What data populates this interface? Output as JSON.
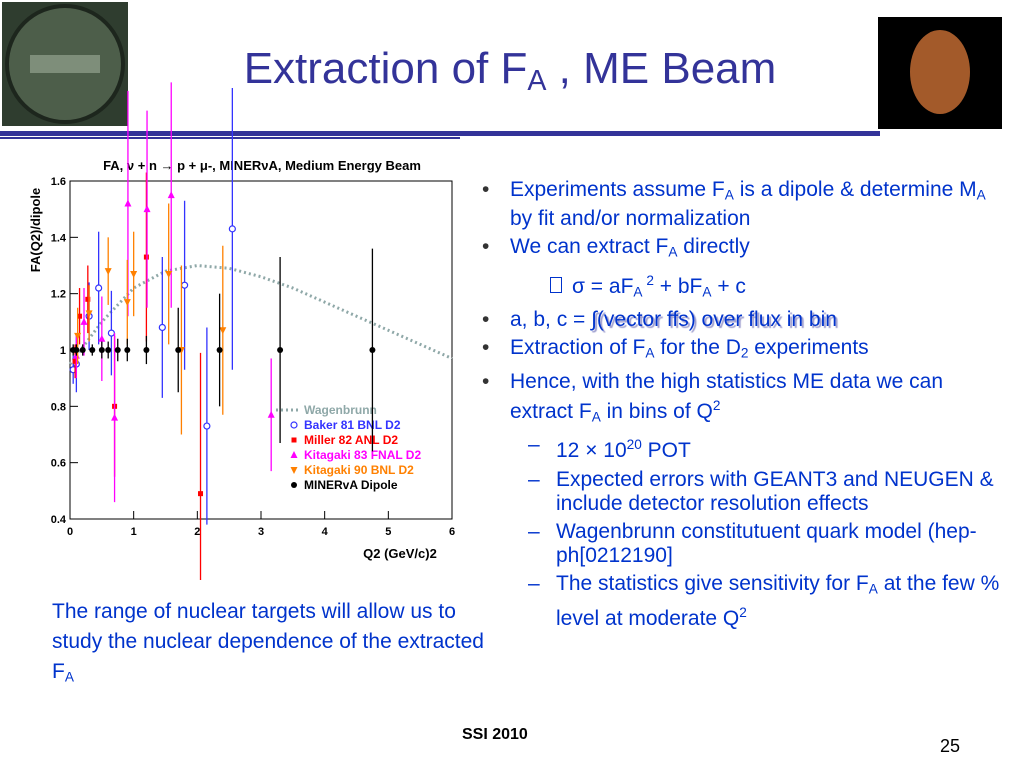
{
  "slide": {
    "title": [
      "Extraction of F",
      "A",
      " , ME Beam"
    ],
    "bullets": [
      [
        "Experiments assume F",
        "A",
        "  is a dipole & determine M",
        "A",
        "  by fit and/or normalization"
      ],
      [
        "We can extract F",
        "A",
        " directly"
      ],
      [
        "σ",
        "  = aF",
        "A",
        " 2",
        " + bF",
        "A",
        " + c"
      ],
      [
        "a, b, c = ",
        "∫(vector ffs) over flux in bin"
      ],
      [
        "Extraction of F",
        "A",
        " for the D",
        "2",
        " experiments"
      ],
      [
        "Hence, with the high statistics ME data we can extract F",
        "A",
        " in bins of Q",
        "2"
      ]
    ],
    "subbullets": [
      [
        "12 × 10",
        "20",
        " POT"
      ],
      [
        "Expected errors  with GEANT3 and NEUGEN & include detector resolution effects"
      ],
      [
        "Wagenbrunn constitutuent quark model (hep-ph[0212190]"
      ],
      [
        "The statistics give sensitivity for F",
        "A",
        "  at the few % level at moderate Q",
        "2"
      ]
    ],
    "caption": [
      "The range of nuclear targets will allow us to study the nuclear dependence of the extracted F",
      "A"
    ],
    "footer": "SSI 2010",
    "page": "25"
  },
  "chart_data": {
    "type": "scatter",
    "title": "FA, ν + n → p + μ-, MINERνA, Medium Energy Beam",
    "xlabel": "Q2 (GeV/c)2",
    "ylabel": "FA(Q2)/dipole",
    "xlim": [
      0,
      6
    ],
    "ylim": [
      0.4,
      1.6
    ],
    "xticks": [
      0,
      1,
      2,
      3,
      4,
      5,
      6
    ],
    "yticks": [
      0.4,
      0.6,
      0.8,
      1,
      1.2,
      1.4,
      1.6
    ],
    "series": [
      {
        "name": "Wagenbrunn",
        "color": "#8fa8a8",
        "kind": "line",
        "x": [
          0,
          0.5,
          1,
          1.5,
          2,
          2.5,
          3,
          3.5,
          4,
          4.5,
          5,
          5.5,
          6
        ],
        "values": [
          0.95,
          1.1,
          1.22,
          1.28,
          1.3,
          1.29,
          1.26,
          1.22,
          1.17,
          1.12,
          1.07,
          1.02,
          0.97
        ]
      },
      {
        "name": "Baker 81 BNL D2",
        "color": "#3333ff",
        "marker": "open-circle",
        "x": [
          0.05,
          0.1,
          0.3,
          0.45,
          0.65,
          1.45,
          1.8,
          2.15,
          2.55
        ],
        "values": [
          0.93,
          0.95,
          1.12,
          1.22,
          1.06,
          1.08,
          1.23,
          0.73,
          1.43
        ],
        "errors": [
          0.05,
          0.1,
          0.12,
          0.2,
          0.15,
          0.25,
          0.3,
          0.35,
          0.5
        ]
      },
      {
        "name": "Miller 82 ANL D2",
        "color": "#ff0000",
        "marker": "square",
        "x": [
          0.08,
          0.15,
          0.28,
          0.7,
          1.2,
          2.05
        ],
        "values": [
          0.96,
          1.12,
          1.18,
          0.8,
          1.33,
          0.49
        ],
        "errors": [
          0.06,
          0.1,
          0.12,
          0.25,
          0.3,
          0.5
        ]
      },
      {
        "name": "Kitagaki 83 FNAL D2",
        "color": "#ff00ff",
        "marker": "triangle",
        "x": [
          0.1,
          0.22,
          0.5,
          0.7,
          0.91,
          1.21,
          1.59,
          3.16
        ],
        "values": [
          0.98,
          1.1,
          1.04,
          0.76,
          1.52,
          1.5,
          1.55,
          0.77
        ],
        "errors": [
          0.08,
          0.12,
          0.15,
          0.3,
          0.4,
          0.35,
          0.4,
          0.2
        ]
      },
      {
        "name": "Kitagaki 90 BNL D2",
        "color": "#ff8000",
        "marker": "down-triangle",
        "x": [
          0.12,
          0.3,
          0.6,
          0.9,
          1.0,
          1.55,
          1.75,
          2.4
        ],
        "values": [
          1.05,
          1.13,
          1.28,
          1.17,
          1.27,
          1.27,
          1.0,
          1.07
        ],
        "errors": [
          0.1,
          0.1,
          0.12,
          0.15,
          0.15,
          0.25,
          0.3,
          0.3
        ]
      },
      {
        "name": "MINERvA Dipole",
        "color": "#000000",
        "marker": "dot",
        "x": [
          0.05,
          0.1,
          0.2,
          0.35,
          0.5,
          0.6,
          0.75,
          0.9,
          1.2,
          1.7,
          2.35,
          3.3,
          4.75
        ],
        "values": [
          1,
          1,
          1,
          1,
          1,
          1,
          1,
          1,
          1,
          1,
          1,
          1,
          1
        ],
        "errors": [
          0.02,
          0.02,
          0.02,
          0.02,
          0.03,
          0.03,
          0.04,
          0.04,
          0.05,
          0.15,
          0.2,
          0.33,
          0.36
        ]
      }
    ]
  }
}
